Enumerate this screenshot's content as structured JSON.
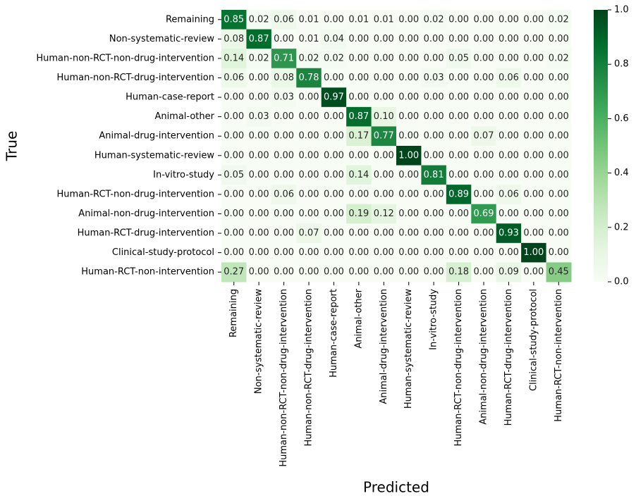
{
  "chart_data": {
    "type": "heatmap",
    "xlabel": "Predicted",
    "ylabel": "True",
    "x_categories": [
      "Remaining",
      "Non-systematic-review",
      "Human-non-RCT-non-drug-intervention",
      "Human-non-RCT-drug-intervention",
      "Human-case-report",
      "Animal-other",
      "Animal-drug-intervention",
      "Human-systematic-review",
      "In-vitro-study",
      "Human-RCT-non-drug-intervention",
      "Animal-non-drug-intervention",
      "Human-RCT-drug-intervention",
      "Clinical-study-protocol",
      "Human-RCT-non-intervention"
    ],
    "y_categories": [
      "Remaining",
      "Non-systematic-review",
      "Human-non-RCT-non-drug-intervention",
      "Human-non-RCT-drug-intervention",
      "Human-case-report",
      "Animal-other",
      "Animal-drug-intervention",
      "Human-systematic-review",
      "In-vitro-study",
      "Human-RCT-non-drug-intervention",
      "Animal-non-drug-intervention",
      "Human-RCT-drug-intervention",
      "Clinical-study-protocol",
      "Human-RCT-non-intervention"
    ],
    "values": [
      [
        0.85,
        0.02,
        0.06,
        0.01,
        0,
        0.01,
        0.01,
        0,
        0.02,
        0,
        0,
        0,
        0,
        0.02
      ],
      [
        0.08,
        0.87,
        0,
        0.01,
        0.04,
        0,
        0,
        0,
        0,
        0,
        0,
        0,
        0,
        0
      ],
      [
        0.14,
        0.02,
        0.71,
        0.02,
        0.02,
        0,
        0,
        0,
        0,
        0.05,
        0,
        0,
        0,
        0.02
      ],
      [
        0.06,
        0,
        0.08,
        0.78,
        0,
        0,
        0,
        0,
        0.03,
        0,
        0,
        0.06,
        0,
        0
      ],
      [
        0,
        0,
        0.03,
        0,
        0.97,
        0,
        0,
        0,
        0,
        0,
        0,
        0,
        0,
        0
      ],
      [
        0,
        0.03,
        0,
        0,
        0,
        0.87,
        0.1,
        0,
        0,
        0,
        0,
        0,
        0,
        0
      ],
      [
        0,
        0,
        0,
        0,
        0,
        0.17,
        0.77,
        0,
        0,
        0,
        0.07,
        0,
        0,
        0
      ],
      [
        0,
        0,
        0,
        0,
        0,
        0,
        0,
        1,
        0,
        0,
        0,
        0,
        0,
        0
      ],
      [
        0.05,
        0,
        0,
        0,
        0,
        0.14,
        0,
        0,
        0.81,
        0,
        0,
        0,
        0,
        0
      ],
      [
        0,
        0,
        0.06,
        0,
        0,
        0,
        0,
        0,
        0,
        0.89,
        0,
        0.06,
        0,
        0
      ],
      [
        0,
        0,
        0,
        0,
        0,
        0.19,
        0.12,
        0,
        0,
        0,
        0.69,
        0,
        0,
        0
      ],
      [
        0,
        0,
        0,
        0.07,
        0,
        0,
        0,
        0,
        0,
        0,
        0,
        0.93,
        0,
        0
      ],
      [
        0,
        0,
        0,
        0,
        0,
        0,
        0,
        0,
        0,
        0,
        0,
        0,
        1,
        0
      ],
      [
        0.27,
        0,
        0,
        0,
        0,
        0,
        0,
        0,
        0,
        0.18,
        0,
        0.09,
        0,
        0.45
      ]
    ],
    "value_labels": [
      [
        "0.85",
        "0.02",
        "0.06",
        "0.01",
        "0.00",
        "0.01",
        "0.01",
        "0.00",
        "0.02",
        "0.00",
        "0.00",
        "0.00",
        "0.00",
        "0.02"
      ],
      [
        "0.08",
        "0.87",
        "0.00",
        "0.01",
        "0.04",
        "0.00",
        "0.00",
        "0.00",
        "0.00",
        "0.00",
        "0.00",
        "0.00",
        "0.00",
        "0.00"
      ],
      [
        "0.14",
        "0.02",
        "0.71",
        "0.02",
        "0.02",
        "0.00",
        "0.00",
        "0.00",
        "0.00",
        "0.05",
        "0.00",
        "0.00",
        "0.00",
        "0.02"
      ],
      [
        "0.06",
        "0.00",
        "0.08",
        "0.78",
        "0.00",
        "0.00",
        "0.00",
        "0.00",
        "0.03",
        "0.00",
        "0.00",
        "0.06",
        "0.00",
        "0.00"
      ],
      [
        "0.00",
        "0.00",
        "0.03",
        "0.00",
        "0.97",
        "0.00",
        "0.00",
        "0.00",
        "0.00",
        "0.00",
        "0.00",
        "0.00",
        "0.00",
        "0.00"
      ],
      [
        "0.00",
        "0.03",
        "0.00",
        "0.00",
        "0.00",
        "0.87",
        "0.10",
        "0.00",
        "0.00",
        "0.00",
        "0.00",
        "0.00",
        "0.00",
        "0.00"
      ],
      [
        "0.00",
        "0.00",
        "0.00",
        "0.00",
        "0.00",
        "0.17",
        "0.77",
        "0.00",
        "0.00",
        "0.00",
        "0.07",
        "0.00",
        "0.00",
        "0.00"
      ],
      [
        "0.00",
        "0.00",
        "0.00",
        "0.00",
        "0.00",
        "0.00",
        "0.00",
        "1.00",
        "0.00",
        "0.00",
        "0.00",
        "0.00",
        "0.00",
        "0.00"
      ],
      [
        "0.05",
        "0.00",
        "0.00",
        "0.00",
        "0.00",
        "0.14",
        "0.00",
        "0.00",
        "0.81",
        "0.00",
        "0.00",
        "0.00",
        "0.00",
        "0.00"
      ],
      [
        "0.00",
        "0.00",
        "0.06",
        "0.00",
        "0.00",
        "0.00",
        "0.00",
        "0.00",
        "0.00",
        "0.89",
        "0.00",
        "0.06",
        "0.00",
        "0.00"
      ],
      [
        "0.00",
        "0.00",
        "0.00",
        "0.00",
        "0.00",
        "0.19",
        "0.12",
        "0.00",
        "0.00",
        "0.00",
        "0.69",
        "0.00",
        "0.00",
        "0.00"
      ],
      [
        "0.00",
        "0.00",
        "0.00",
        "0.07",
        "0.00",
        "0.00",
        "0.00",
        "0.00",
        "0.00",
        "0.00",
        "0.00",
        "0.93",
        "0.00",
        "0.00"
      ],
      [
        "0.00",
        "0.00",
        "0.00",
        "0.00",
        "0.00",
        "0.00",
        "0.00",
        "0.00",
        "0.00",
        "0.00",
        "0.00",
        "0.00",
        "1.00",
        "0.00"
      ],
      [
        "0.27",
        "0.00",
        "0.00",
        "0.00",
        "0.00",
        "0.00",
        "0.00",
        "0.00",
        "0.00",
        "0.18",
        "0.00",
        "0.09",
        "0.00",
        "0.45"
      ]
    ],
    "colormap": [
      "#f7fcf5",
      "#e5f5e0",
      "#c7e9c0",
      "#a1d99b",
      "#74c476",
      "#41ab5d",
      "#238b45",
      "#006d2c",
      "#00441b"
    ],
    "colorbar_lim": [
      0,
      1
    ],
    "colorbar_ticks": [
      {
        "value": 0,
        "label": "0.0"
      },
      {
        "value": 0.2,
        "label": "0.2"
      },
      {
        "value": 0.4,
        "label": "0.4"
      },
      {
        "value": 0.6,
        "label": "0.6"
      },
      {
        "value": 0.8,
        "label": "0.8"
      },
      {
        "value": 1,
        "label": "1.0"
      }
    ]
  }
}
